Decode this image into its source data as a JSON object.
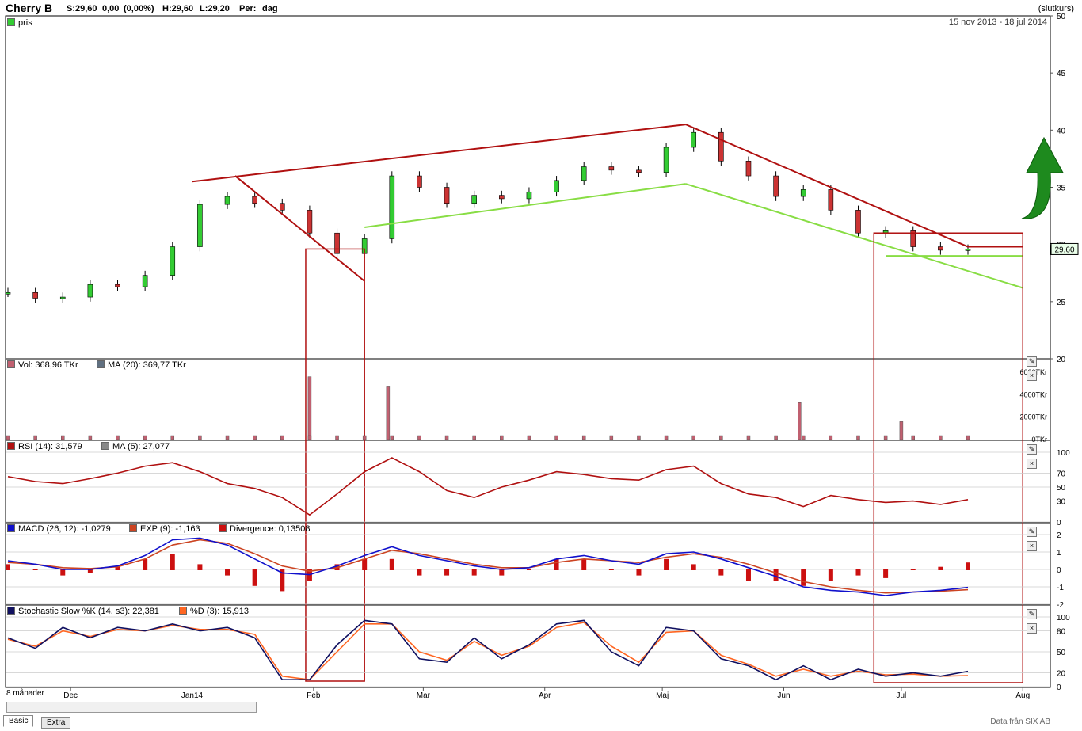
{
  "header": {
    "title": "Cherry B",
    "stats": [
      "S:29,60",
      "0,00",
      "(0,00%)",
      "H:29,60",
      "L:29,20",
      "Per:",
      "dag"
    ],
    "mode": "(slutkurs)",
    "date_range": "15 nov 2013 - 18 jul 2014"
  },
  "panels": {
    "price": {
      "legend": "pris",
      "last_label": "29,60"
    },
    "volume": {
      "legend_vol": "Vol: 368,96 TKr",
      "legend_ma": "MA (20): 369,77 TKr",
      "ticks": [
        "6000TKr",
        "4000TKr",
        "2000TKr",
        "0TKr"
      ]
    },
    "rsi": {
      "legend_rsi": "RSI (14): 31,579",
      "legend_ma": "MA (5): 27,077",
      "ticks": [
        "100",
        "70",
        "50",
        "30",
        "0"
      ]
    },
    "macd": {
      "legend_macd": "MACD (26, 12): -1,0279",
      "legend_exp": "EXP (9): -1,163",
      "legend_div": "Divergence: 0,13508",
      "ticks": [
        "2",
        "1",
        "0",
        "-1",
        "-2"
      ]
    },
    "stoch": {
      "legend_k": "Stochastic Slow %K (14, s3): 22,381",
      "legend_d": "%D (3): 15,913",
      "ticks": [
        "100",
        "80",
        "50",
        "20",
        "0"
      ]
    }
  },
  "xaxis": {
    "period_label": "8 månader",
    "months": [
      "Dec",
      "Jan14",
      "Feb",
      "Mar",
      "Apr",
      "Maj",
      "Jun",
      "Jul",
      "Aug"
    ]
  },
  "tabs": [
    "Basic",
    "Extra"
  ],
  "credit": "Data från SIX AB",
  "colors": {
    "up": "#33cc33",
    "down": "#cc3333",
    "trend_red": "#b01010",
    "trend_green": "#88dd44",
    "macd": "#1010cc",
    "exp": "#cc4422",
    "rsi": "#b01010",
    "stoch_k": "#101060",
    "stoch_d": "#ff6622"
  },
  "chart_data": [
    {
      "type": "candlestick",
      "title": "Cherry B",
      "x_range": [
        "2013-11-15",
        "2014-07-18"
      ],
      "ylim": [
        20,
        50
      ],
      "yticks": [
        20,
        25,
        30,
        35,
        40,
        45,
        50
      ],
      "close_series": [
        {
          "date": "2013-11-15",
          "close": 25.8
        },
        {
          "date": "2013-11-22",
          "close": 25.3
        },
        {
          "date": "2013-11-29",
          "close": 25.4
        },
        {
          "date": "2013-12-06",
          "close": 26.5
        },
        {
          "date": "2013-12-13",
          "close": 26.3
        },
        {
          "date": "2013-12-20",
          "close": 27.3
        },
        {
          "date": "2013-12-27",
          "close": 29.8
        },
        {
          "date": "2014-01-03",
          "close": 33.5
        },
        {
          "date": "2014-01-10",
          "close": 34.2
        },
        {
          "date": "2014-01-17",
          "close": 33.6
        },
        {
          "date": "2014-01-24",
          "close": 33.0
        },
        {
          "date": "2014-01-31",
          "close": 31.0
        },
        {
          "date": "2014-02-07",
          "close": 29.2
        },
        {
          "date": "2014-02-14",
          "close": 30.5
        },
        {
          "date": "2014-02-21",
          "close": 36.0
        },
        {
          "date": "2014-02-28",
          "close": 35.0
        },
        {
          "date": "2014-03-07",
          "close": 33.6
        },
        {
          "date": "2014-03-14",
          "close": 34.3
        },
        {
          "date": "2014-03-21",
          "close": 34.0
        },
        {
          "date": "2014-03-28",
          "close": 34.6
        },
        {
          "date": "2014-04-04",
          "close": 35.6
        },
        {
          "date": "2014-04-11",
          "close": 36.8
        },
        {
          "date": "2014-04-18",
          "close": 36.5
        },
        {
          "date": "2014-04-25",
          "close": 36.3
        },
        {
          "date": "2014-05-02",
          "close": 38.5
        },
        {
          "date": "2014-05-09",
          "close": 39.8
        },
        {
          "date": "2014-05-16",
          "close": 37.3
        },
        {
          "date": "2014-05-23",
          "close": 36.0
        },
        {
          "date": "2014-05-30",
          "close": 34.2
        },
        {
          "date": "2014-06-06",
          "close": 34.8
        },
        {
          "date": "2014-06-13",
          "close": 33.0
        },
        {
          "date": "2014-06-20",
          "close": 31.0
        },
        {
          "date": "2014-06-27",
          "close": 31.2
        },
        {
          "date": "2014-07-04",
          "close": 29.8
        },
        {
          "date": "2014-07-11",
          "close": 29.5
        },
        {
          "date": "2014-07-18",
          "close": 29.6
        }
      ],
      "last": 29.6
    },
    {
      "type": "bar",
      "title": "Vol",
      "ylabel": "TKr",
      "ylim": [
        0,
        6000
      ],
      "peaks": [
        {
          "date": "2014-01-31",
          "value": 5600
        },
        {
          "date": "2014-02-20",
          "value": 4700
        },
        {
          "date": "2014-06-05",
          "value": 3300
        },
        {
          "date": "2014-07-01",
          "value": 1600
        }
      ],
      "last": 368.96,
      "ma20": 369.77
    },
    {
      "type": "line",
      "title": "RSI (14)",
      "ylim": [
        0,
        100
      ],
      "levels": [
        30,
        70
      ],
      "rsi": [
        65,
        58,
        55,
        62,
        70,
        80,
        85,
        72,
        55,
        48,
        35,
        10,
        40,
        72,
        92,
        72,
        45,
        35,
        50,
        60,
        72,
        68,
        62,
        60,
        75,
        80,
        55,
        40,
        35,
        22,
        38,
        32,
        28,
        30,
        25,
        32
      ],
      "last": 31.579,
      "ma5_last": 27.077
    },
    {
      "type": "line",
      "title": "MACD (26, 12)",
      "ylim": [
        -2,
        2
      ],
      "macd": [
        0.5,
        0.3,
        0.0,
        0.0,
        0.2,
        0.8,
        1.7,
        1.8,
        1.4,
        0.6,
        -0.2,
        -0.3,
        0.2,
        0.8,
        1.3,
        0.8,
        0.5,
        0.2,
        0.0,
        0.1,
        0.6,
        0.8,
        0.5,
        0.3,
        0.9,
        1.0,
        0.6,
        0.1,
        -0.4,
        -1.0,
        -1.2,
        -1.3,
        -1.5,
        -1.3,
        -1.2,
        -1.03
      ],
      "exp": [
        0.4,
        0.3,
        0.1,
        0.05,
        0.15,
        0.6,
        1.4,
        1.7,
        1.5,
        0.9,
        0.2,
        -0.1,
        0.1,
        0.6,
        1.1,
        0.9,
        0.6,
        0.3,
        0.1,
        0.1,
        0.4,
        0.6,
        0.5,
        0.4,
        0.7,
        0.9,
        0.7,
        0.3,
        -0.2,
        -0.7,
        -1.0,
        -1.2,
        -1.35,
        -1.3,
        -1.25,
        -1.163
      ],
      "last_macd": -1.0279,
      "last_exp": -1.163,
      "last_divergence": 0.13508
    },
    {
      "type": "line",
      "title": "Stochastic Slow %K (14, s3)",
      "ylim": [
        0,
        100
      ],
      "levels": [
        20,
        50,
        80
      ],
      "k": [
        70,
        55,
        85,
        70,
        85,
        80,
        90,
        80,
        85,
        70,
        10,
        10,
        60,
        95,
        90,
        40,
        35,
        70,
        40,
        60,
        90,
        95,
        50,
        30,
        85,
        80,
        40,
        30,
        10,
        30,
        10,
        25,
        15,
        20,
        15,
        22
      ],
      "d": [
        68,
        58,
        80,
        72,
        82,
        80,
        88,
        82,
        82,
        75,
        15,
        10,
        50,
        90,
        90,
        50,
        38,
        65,
        45,
        58,
        85,
        92,
        58,
        35,
        78,
        80,
        45,
        32,
        15,
        25,
        15,
        22,
        17,
        18,
        15,
        15.9
      ],
      "last_k": 22.381,
      "last_d": 15.913
    }
  ]
}
